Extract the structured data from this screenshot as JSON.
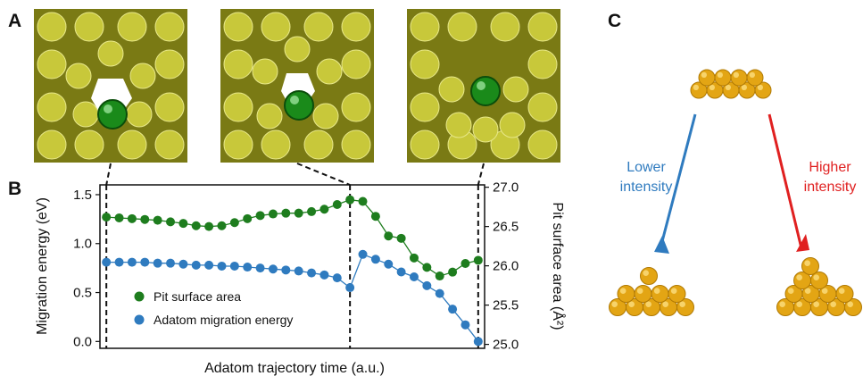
{
  "panels": {
    "a": "A",
    "b": "B",
    "c": "C"
  },
  "panel_a": {
    "snapshots": [
      {
        "name": "snapshot-1"
      },
      {
        "name": "snapshot-2"
      },
      {
        "name": "snapshot-3"
      }
    ]
  },
  "panel_c": {
    "lower_label_line1": "Lower",
    "lower_label_line2": "intensity",
    "higher_label_line1": "Higher",
    "higher_label_line2": "intensity",
    "lower_color": "#2f7bbf",
    "higher_color": "#e02020",
    "atom_color": "#e3a514"
  },
  "chart_data": {
    "type": "line",
    "title": "",
    "xlabel": "Adatom trajectory time (a.u.)",
    "ylabel_left": "Migration energy (eV)",
    "ylabel_right": "Pit surface area (Å²)",
    "ylim_left": [
      -0.07,
      1.6
    ],
    "ylim_right": [
      24.95,
      27.03
    ],
    "yticks_left": [
      "0.0",
      "0.5",
      "1.0",
      "1.5"
    ],
    "yticks_left_values": [
      0.0,
      0.5,
      1.0,
      1.5
    ],
    "yticks_right": [
      "25.0",
      "25.5",
      "26.0",
      "26.5",
      "27.0"
    ],
    "yticks_right_values": [
      25.0,
      25.5,
      26.0,
      26.5,
      27.0
    ],
    "x": [
      0,
      1,
      2,
      3,
      4,
      5,
      6,
      7,
      8,
      9,
      10,
      11,
      12,
      13,
      14,
      15,
      16,
      17,
      18,
      19,
      20,
      21,
      22,
      23,
      24,
      25,
      26,
      27,
      28,
      29
    ],
    "xlim": [
      -0.5,
      29.5
    ],
    "dashed_lines_x": [
      0,
      19,
      29
    ],
    "legend_position": "lower-left",
    "series": [
      {
        "name": "Pit surface area",
        "axis": "right",
        "color": "#1e7d1e",
        "values": [
          26.62,
          26.61,
          26.6,
          26.59,
          26.58,
          26.56,
          26.54,
          26.51,
          26.5,
          26.51,
          26.55,
          26.6,
          26.64,
          26.66,
          26.67,
          26.67,
          26.69,
          26.72,
          26.78,
          26.84,
          26.82,
          26.63,
          26.38,
          26.35,
          26.1,
          25.98,
          25.87,
          25.92,
          26.03,
          26.07
        ]
      },
      {
        "name": "Adatom migration energy",
        "axis": "left",
        "color": "#2f7bbf",
        "values": [
          0.81,
          0.81,
          0.81,
          0.81,
          0.8,
          0.8,
          0.79,
          0.78,
          0.78,
          0.77,
          0.77,
          0.76,
          0.75,
          0.74,
          0.73,
          0.72,
          0.7,
          0.68,
          0.65,
          0.55,
          0.89,
          0.84,
          0.79,
          0.71,
          0.66,
          0.57,
          0.49,
          0.33,
          0.17,
          0.0
        ]
      }
    ]
  }
}
